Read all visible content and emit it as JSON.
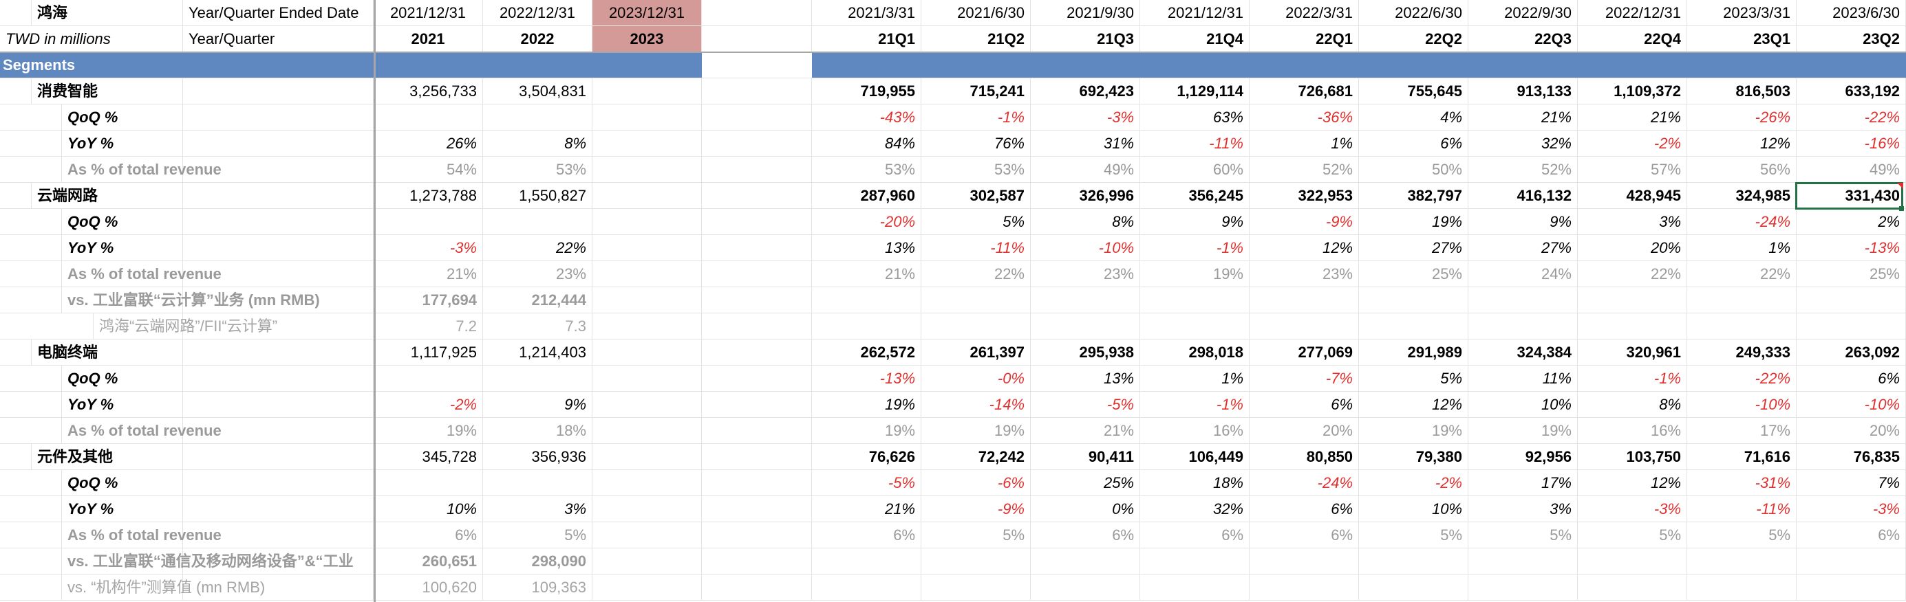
{
  "header": {
    "company": "鸿海",
    "units_note": "TWD in millions",
    "date_label": "Year/Quarter Ended Date",
    "period_label": "Year/Quarter"
  },
  "annual": {
    "dates": [
      "2021/12/31",
      "2022/12/31",
      "2023/12/31"
    ],
    "periods": [
      "2021",
      "2022",
      "2023"
    ]
  },
  "quarterly": {
    "dates": [
      "2021/3/31",
      "2021/6/30",
      "2021/9/30",
      "2021/12/31",
      "2022/3/31",
      "2022/6/30",
      "2022/9/30",
      "2022/12/31",
      "2023/3/31",
      "2023/6/30"
    ],
    "periods": [
      "21Q1",
      "21Q2",
      "21Q3",
      "21Q4",
      "22Q1",
      "22Q2",
      "22Q3",
      "22Q4",
      "23Q1",
      "23Q2"
    ]
  },
  "segments_title": "Segments",
  "rows": [
    {
      "label": "消费智能",
      "style": "seg",
      "annual": [
        "3,256,733",
        "3,504,831",
        ""
      ],
      "q": [
        "719,955",
        "715,241",
        "692,423",
        "1,129,114",
        "726,681",
        "755,645",
        "913,133",
        "1,109,372",
        "816,503",
        "633,192"
      ]
    },
    {
      "label": "QoQ %",
      "style": "pct",
      "annual": [
        "",
        "",
        ""
      ],
      "q": [
        "-43%",
        "-1%",
        "-3%",
        "63%",
        "-36%",
        "4%",
        "21%",
        "21%",
        "-26%",
        "-22%"
      ]
    },
    {
      "label": "YoY %",
      "style": "pct",
      "annual": [
        "26%",
        "8%",
        ""
      ],
      "q": [
        "84%",
        "76%",
        "31%",
        "-11%",
        "1%",
        "6%",
        "32%",
        "-2%",
        "12%",
        "-16%"
      ]
    },
    {
      "label": "As % of total revenue",
      "style": "share",
      "annual": [
        "54%",
        "53%",
        ""
      ],
      "q": [
        "53%",
        "53%",
        "49%",
        "60%",
        "52%",
        "50%",
        "52%",
        "57%",
        "56%",
        "49%"
      ]
    },
    {
      "label": "云端网路",
      "style": "seg",
      "annual": [
        "1,273,788",
        "1,550,827",
        ""
      ],
      "q": [
        "287,960",
        "302,587",
        "326,996",
        "356,245",
        "322,953",
        "382,797",
        "416,132",
        "428,945",
        "324,985",
        "331,430"
      ]
    },
    {
      "label": "QoQ %",
      "style": "pct",
      "annual": [
        "",
        "",
        ""
      ],
      "q": [
        "-20%",
        "5%",
        "8%",
        "9%",
        "-9%",
        "19%",
        "9%",
        "3%",
        "-24%",
        "2%"
      ]
    },
    {
      "label": "YoY %",
      "style": "pct",
      "annual": [
        "-3%",
        "22%",
        ""
      ],
      "q": [
        "13%",
        "-11%",
        "-10%",
        "-1%",
        "12%",
        "27%",
        "27%",
        "20%",
        "1%",
        "-13%"
      ]
    },
    {
      "label": "As % of total revenue",
      "style": "share",
      "annual": [
        "21%",
        "23%",
        ""
      ],
      "q": [
        "21%",
        "22%",
        "23%",
        "19%",
        "23%",
        "25%",
        "24%",
        "22%",
        "22%",
        "25%"
      ]
    },
    {
      "label": "vs. 工业富联“云计算”业务 (mn RMB)",
      "style": "cmp",
      "annual": [
        "177,694",
        "212,444",
        ""
      ],
      "q": [
        "",
        "",
        "",
        "",
        "",
        "",
        "",
        "",
        "",
        ""
      ]
    },
    {
      "label": "鸿海“云端网路”/FII“云计算”",
      "style": "ratio",
      "annual": [
        "7.2",
        "7.3",
        ""
      ],
      "q": [
        "",
        "",
        "",
        "",
        "",
        "",
        "",
        "",
        "",
        ""
      ]
    },
    {
      "label": "电脑终端",
      "style": "seg",
      "annual": [
        "1,117,925",
        "1,214,403",
        ""
      ],
      "q": [
        "262,572",
        "261,397",
        "295,938",
        "298,018",
        "277,069",
        "291,989",
        "324,384",
        "320,961",
        "249,333",
        "263,092"
      ]
    },
    {
      "label": "QoQ %",
      "style": "pct",
      "annual": [
        "",
        "",
        ""
      ],
      "q": [
        "-13%",
        "-0%",
        "13%",
        "1%",
        "-7%",
        "5%",
        "11%",
        "-1%",
        "-22%",
        "6%"
      ]
    },
    {
      "label": "YoY %",
      "style": "pct",
      "annual": [
        "-2%",
        "9%",
        ""
      ],
      "q": [
        "19%",
        "-14%",
        "-5%",
        "-1%",
        "6%",
        "12%",
        "10%",
        "8%",
        "-10%",
        "-10%"
      ]
    },
    {
      "label": "As % of total revenue",
      "style": "share",
      "annual": [
        "19%",
        "18%",
        ""
      ],
      "q": [
        "19%",
        "19%",
        "21%",
        "16%",
        "20%",
        "19%",
        "19%",
        "16%",
        "17%",
        "20%"
      ]
    },
    {
      "label": "元件及其他",
      "style": "seg",
      "annual": [
        "345,728",
        "356,936",
        ""
      ],
      "q": [
        "76,626",
        "72,242",
        "90,411",
        "106,449",
        "80,850",
        "79,380",
        "92,956",
        "103,750",
        "71,616",
        "76,835"
      ]
    },
    {
      "label": "QoQ %",
      "style": "pct",
      "annual": [
        "",
        "",
        ""
      ],
      "q": [
        "-5%",
        "-6%",
        "25%",
        "18%",
        "-24%",
        "-2%",
        "17%",
        "12%",
        "-31%",
        "7%"
      ]
    },
    {
      "label": "YoY %",
      "style": "pct",
      "annual": [
        "10%",
        "3%",
        ""
      ],
      "q": [
        "21%",
        "-9%",
        "0%",
        "32%",
        "6%",
        "10%",
        "3%",
        "-3%",
        "-11%",
        "-3%"
      ]
    },
    {
      "label": "As % of total revenue",
      "style": "share",
      "annual": [
        "6%",
        "5%",
        ""
      ],
      "q": [
        "6%",
        "5%",
        "6%",
        "6%",
        "6%",
        "5%",
        "5%",
        "5%",
        "5%",
        "6%"
      ]
    },
    {
      "label": "vs. 工业富联“通信及移动网络设备”&“工业",
      "style": "cmp",
      "annual": [
        "260,651",
        "298,090",
        ""
      ],
      "q": [
        "",
        "",
        "",
        "",
        "",
        "",
        "",
        "",
        "",
        ""
      ]
    },
    {
      "label": "vs. “机构件”测算值 (mn RMB)",
      "style": "cmp2",
      "annual": [
        "100,620",
        "109,363",
        ""
      ],
      "q": [
        "",
        "",
        "",
        "",
        "",
        "",
        "",
        "",
        "",
        ""
      ]
    }
  ],
  "selected_cell": "23Q2 云端网路",
  "colors": {
    "segment_bar": "#5f87c0",
    "highlight_2023": "#d39a97",
    "negative": "#e0312f",
    "muted": "#9a9a9a",
    "selection": "#217346"
  }
}
